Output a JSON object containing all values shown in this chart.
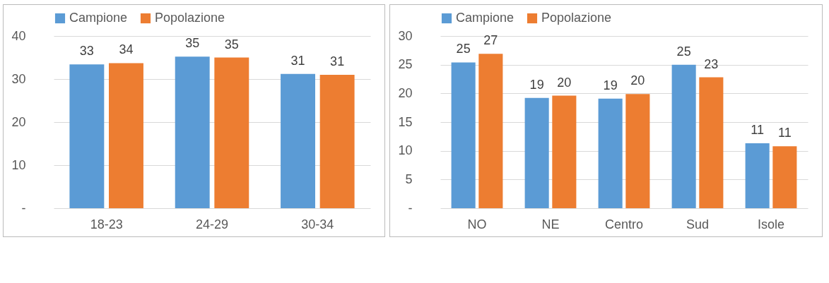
{
  "chart_data": [
    {
      "type": "bar",
      "categories": [
        "18-23",
        "24-29",
        "30-34"
      ],
      "series": [
        {
          "name": "Campione",
          "color": "#5b9bd5",
          "values": [
            33.4,
            35.2,
            31.2
          ],
          "value_labels": [
            "33",
            "35",
            "31"
          ]
        },
        {
          "name": "Popolazione",
          "color": "#ed7d31",
          "values": [
            33.7,
            35.0,
            31.0
          ],
          "value_labels": [
            "34",
            "35",
            "31"
          ]
        }
      ],
      "ylim": [
        0,
        40
      ],
      "yticks": [
        {
          "value": 0,
          "label": "-"
        },
        10,
        20,
        30,
        40
      ],
      "grid": "y",
      "legend": "top"
    },
    {
      "type": "bar",
      "categories": [
        "NO",
        "NE",
        "Centro",
        "Sud",
        "Isole"
      ],
      "series": [
        {
          "name": "Campione",
          "color": "#5b9bd5",
          "values": [
            25.4,
            19.2,
            19.1,
            25.0,
            11.3
          ],
          "value_labels": [
            "25",
            "19",
            "19",
            "25",
            "11"
          ]
        },
        {
          "name": "Popolazione",
          "color": "#ed7d31",
          "values": [
            26.9,
            19.6,
            19.9,
            22.8,
            10.8
          ],
          "value_labels": [
            "27",
            "20",
            "20",
            "23",
            "11"
          ]
        }
      ],
      "ylim": [
        0,
        30
      ],
      "yticks": [
        {
          "value": 0,
          "label": "-"
        },
        5,
        10,
        15,
        20,
        25,
        30
      ],
      "grid": "y",
      "legend": "top"
    }
  ]
}
